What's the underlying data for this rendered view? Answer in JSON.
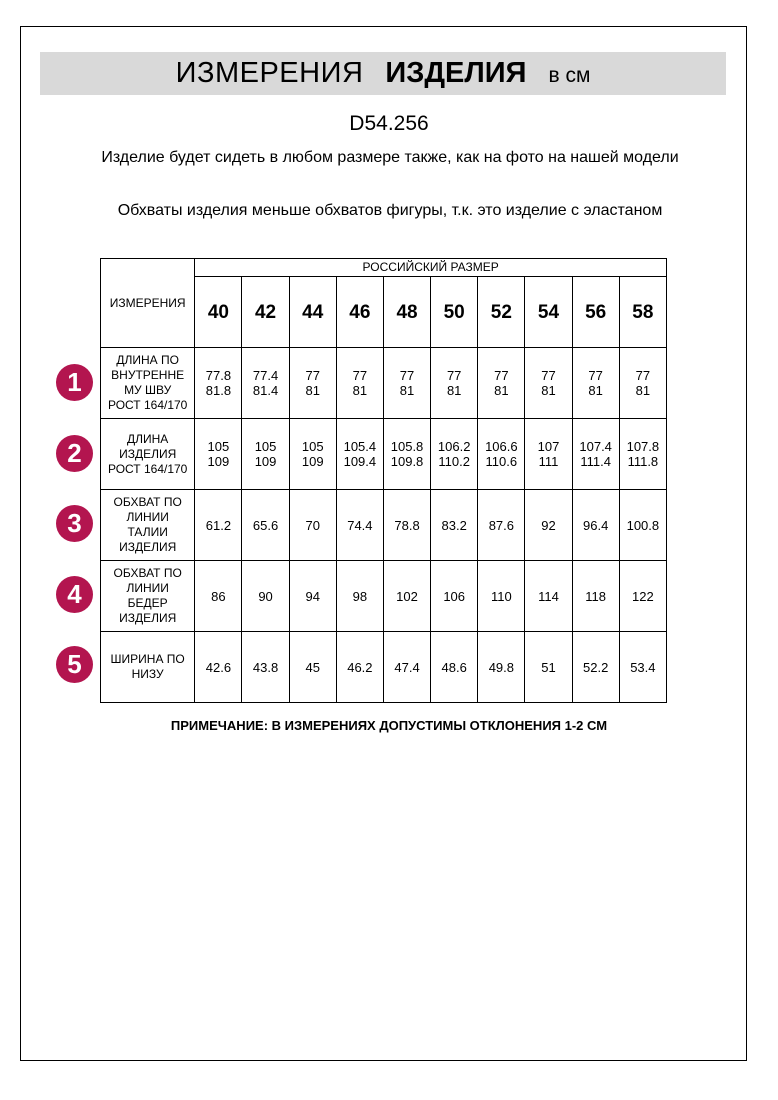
{
  "header": {
    "title_regular": "ИЗМЕРЕНИЯ",
    "title_bold": "ИЗДЕЛИЯ",
    "unit": "в см"
  },
  "article": "D54.256",
  "notes": [
    "Изделие будет сидеть в любом размере также, как на фото на нашей модели",
    "Обхваты изделия меньше обхватов фигуры, т.к. это изделие с эластаном"
  ],
  "table": {
    "label_header": "ИЗМЕРЕНИЯ",
    "size_group": "РОССИЙСКИЙ РАЗМЕР",
    "sizes": [
      "40",
      "42",
      "44",
      "46",
      "48",
      "50",
      "52",
      "54",
      "56",
      "58"
    ],
    "rows": [
      {
        "num": "1",
        "label": [
          "ДЛИНА ПО",
          "ВНУТРЕННЕ",
          "МУ ШВУ",
          "РОСТ 164/170"
        ],
        "values": [
          [
            "77.8",
            "81.8"
          ],
          [
            "77.4",
            "81.4"
          ],
          [
            "77",
            "81"
          ],
          [
            "77",
            "81"
          ],
          [
            "77",
            "81"
          ],
          [
            "77",
            "81"
          ],
          [
            "77",
            "81"
          ],
          [
            "77",
            "81"
          ],
          [
            "77",
            "81"
          ],
          [
            "77",
            "81"
          ]
        ]
      },
      {
        "num": "2",
        "label": [
          "ДЛИНА",
          "ИЗДЕЛИЯ",
          "РОСТ 164/170"
        ],
        "values": [
          [
            "105",
            "109"
          ],
          [
            "105",
            "109"
          ],
          [
            "105",
            "109"
          ],
          [
            "105.4",
            "109.4"
          ],
          [
            "105.8",
            "109.8"
          ],
          [
            "106.2",
            "110.2"
          ],
          [
            "106.6",
            "110.6"
          ],
          [
            "107",
            "111"
          ],
          [
            "107.4",
            "111.4"
          ],
          [
            "107.8",
            "111.8"
          ]
        ]
      },
      {
        "num": "3",
        "label": [
          "ОБХВАТ ПО",
          "ЛИНИИ",
          "ТАЛИИ",
          "ИЗДЕЛИЯ"
        ],
        "values": [
          [
            "61.2"
          ],
          [
            "65.6"
          ],
          [
            "70"
          ],
          [
            "74.4"
          ],
          [
            "78.8"
          ],
          [
            "83.2"
          ],
          [
            "87.6"
          ],
          [
            "92"
          ],
          [
            "96.4"
          ],
          [
            "100.8"
          ]
        ]
      },
      {
        "num": "4",
        "label": [
          "ОБХВАТ ПО",
          "ЛИНИИ",
          "БЕДЕР",
          "ИЗДЕЛИЯ"
        ],
        "values": [
          [
            "86"
          ],
          [
            "90"
          ],
          [
            "94"
          ],
          [
            "98"
          ],
          [
            "102"
          ],
          [
            "106"
          ],
          [
            "110"
          ],
          [
            "114"
          ],
          [
            "118"
          ],
          [
            "122"
          ]
        ]
      },
      {
        "num": "5",
        "label": [
          "ШИРИНА ПО",
          "НИЗУ"
        ],
        "values": [
          [
            "42.6"
          ],
          [
            "43.8"
          ],
          [
            "45"
          ],
          [
            "46.2"
          ],
          [
            "47.4"
          ],
          [
            "48.6"
          ],
          [
            "49.8"
          ],
          [
            "51"
          ],
          [
            "52.2"
          ],
          [
            "53.4"
          ]
        ]
      }
    ]
  },
  "footnote": "ПРИМЕЧАНИЕ: В ИЗМЕРЕНИЯХ ДОПУСТИМЫ ОТКЛОНЕНИЯ 1-2 СМ",
  "colors": {
    "badge": "#b3154f",
    "band": "#d9d9d9"
  }
}
